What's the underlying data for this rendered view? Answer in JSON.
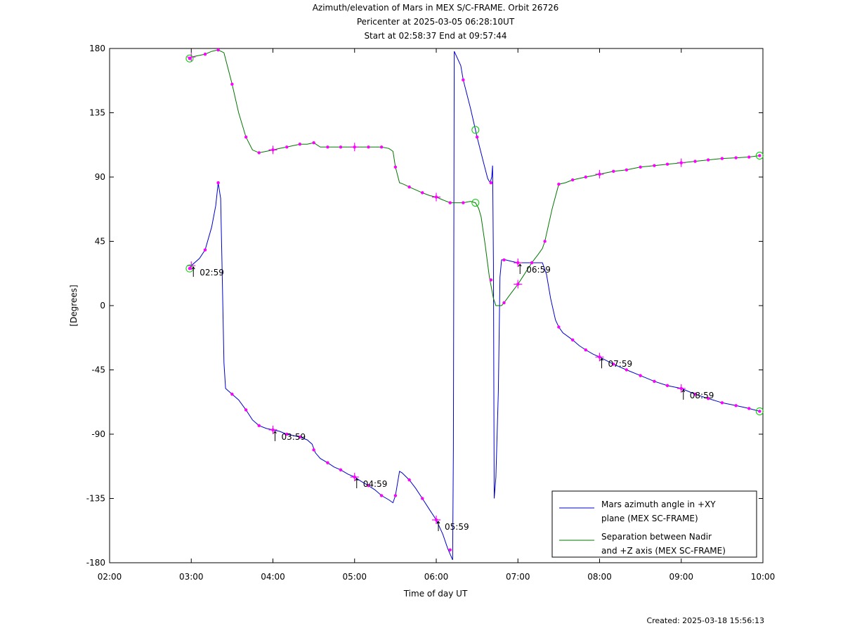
{
  "title": {
    "line1": "Azimuth/elevation of Mars in MEX S/C-FRAME.  Orbit 26726",
    "line2": "Pericenter at 2025-03-05 06:28:10UT",
    "line3": "Start at 02:58:37 End at 09:57:44"
  },
  "created": "Created: 2025-03-18 15:56:13",
  "chart_data": {
    "type": "line",
    "xlabel": "Time of day UT",
    "ylabel": "[Degrees]",
    "xlim": [
      2.0,
      10.0
    ],
    "ylim": [
      -180,
      180
    ],
    "x_ticks": [
      {
        "v": 2,
        "label": "02:00"
      },
      {
        "v": 3,
        "label": "03:00"
      },
      {
        "v": 4,
        "label": "04:00"
      },
      {
        "v": 5,
        "label": "05:00"
      },
      {
        "v": 6,
        "label": "06:00"
      },
      {
        "v": 7,
        "label": "07:00"
      },
      {
        "v": 8,
        "label": "08:00"
      },
      {
        "v": 9,
        "label": "09:00"
      },
      {
        "v": 10,
        "label": "10:00"
      }
    ],
    "y_ticks": [
      {
        "v": 180,
        "label": "180"
      },
      {
        "v": 135,
        "label": "135"
      },
      {
        "v": 90,
        "label": "90"
      },
      {
        "v": 45,
        "label": "45"
      },
      {
        "v": 0,
        "label": "0"
      },
      {
        "v": -45,
        "label": "-45"
      },
      {
        "v": -90,
        "label": "-90"
      },
      {
        "v": -135,
        "label": "-135"
      },
      {
        "v": -180,
        "label": "-180"
      }
    ],
    "grid": false,
    "legend_position": "bottom-right",
    "marker_color": "#ff00ff",
    "circle_color": "#00cc00",
    "series": [
      {
        "name": "Mars azimuth angle in +XY plane (MEX SC-FRAME)",
        "legend_lines": [
          "Mars azimuth angle in +XY",
          "plane (MEX SC-FRAME)"
        ],
        "color": "#0000cc",
        "points": [
          [
            2.98,
            26
          ],
          [
            3.0,
            28
          ],
          [
            3.1,
            33
          ],
          [
            3.17,
            39
          ],
          [
            3.25,
            55
          ],
          [
            3.3,
            70
          ],
          [
            3.33,
            86
          ],
          [
            3.36,
            75
          ],
          [
            3.38,
            20
          ],
          [
            3.4,
            -40
          ],
          [
            3.42,
            -58
          ],
          [
            3.5,
            -62
          ],
          [
            3.58,
            -66
          ],
          [
            3.67,
            -73
          ],
          [
            3.75,
            -80
          ],
          [
            3.83,
            -84
          ],
          [
            3.92,
            -86
          ],
          [
            4.0,
            -87
          ],
          [
            4.08,
            -88
          ],
          [
            4.17,
            -90
          ],
          [
            4.25,
            -91
          ],
          [
            4.33,
            -92
          ],
          [
            4.42,
            -94
          ],
          [
            4.48,
            -97
          ],
          [
            4.52,
            -103
          ],
          [
            4.58,
            -107
          ],
          [
            4.67,
            -110
          ],
          [
            4.75,
            -113
          ],
          [
            4.83,
            -115
          ],
          [
            4.92,
            -118
          ],
          [
            5.0,
            -120
          ],
          [
            5.08,
            -123
          ],
          [
            5.17,
            -126
          ],
          [
            5.25,
            -129
          ],
          [
            5.33,
            -133
          ],
          [
            5.42,
            -136
          ],
          [
            5.47,
            -138
          ],
          [
            5.5,
            -133
          ],
          [
            5.55,
            -116
          ],
          [
            5.58,
            -117
          ],
          [
            5.67,
            -122
          ],
          [
            5.75,
            -128
          ],
          [
            5.83,
            -135
          ],
          [
            5.92,
            -143
          ],
          [
            6.0,
            -150
          ],
          [
            6.08,
            -160
          ],
          [
            6.14,
            -170
          ],
          [
            6.2,
            -178
          ],
          [
            6.21,
            -100
          ],
          [
            6.22,
            178
          ],
          [
            6.3,
            168
          ],
          [
            6.33,
            158
          ],
          [
            6.42,
            138
          ],
          [
            6.48,
            123
          ],
          [
            6.5,
            118
          ],
          [
            6.58,
            100
          ],
          [
            6.63,
            89
          ],
          [
            6.66,
            86
          ],
          [
            6.68,
            90
          ],
          [
            6.69,
            98
          ],
          [
            6.7,
            30
          ],
          [
            6.71,
            -135
          ],
          [
            6.73,
            -120
          ],
          [
            6.76,
            -60
          ],
          [
            6.78,
            20
          ],
          [
            6.8,
            32
          ],
          [
            6.85,
            32
          ],
          [
            6.92,
            31
          ],
          [
            7.0,
            30
          ],
          [
            7.08,
            30
          ],
          [
            7.17,
            30
          ],
          [
            7.25,
            30
          ],
          [
            7.3,
            30
          ],
          [
            7.35,
            22
          ],
          [
            7.4,
            5
          ],
          [
            7.46,
            -10
          ],
          [
            7.5,
            -15
          ],
          [
            7.55,
            -19
          ],
          [
            7.67,
            -24
          ],
          [
            7.75,
            -28
          ],
          [
            7.83,
            -31
          ],
          [
            7.92,
            -34
          ],
          [
            8.0,
            -36
          ],
          [
            8.17,
            -41
          ],
          [
            8.33,
            -45
          ],
          [
            8.5,
            -49
          ],
          [
            8.67,
            -53
          ],
          [
            8.83,
            -56
          ],
          [
            9.0,
            -58
          ],
          [
            9.17,
            -62
          ],
          [
            9.33,
            -65
          ],
          [
            9.5,
            -68
          ],
          [
            9.67,
            -70
          ],
          [
            9.83,
            -72
          ],
          [
            9.96,
            -74
          ]
        ],
        "markers": [
          [
            2.98,
            26
          ],
          [
            3.17,
            39
          ],
          [
            3.33,
            86
          ],
          [
            3.5,
            -62
          ],
          [
            3.67,
            -73
          ],
          [
            3.83,
            -84
          ],
          [
            4.0,
            -87
          ],
          [
            4.17,
            -90
          ],
          [
            4.33,
            -92
          ],
          [
            4.5,
            -101
          ],
          [
            4.67,
            -110
          ],
          [
            4.83,
            -115
          ],
          [
            5.0,
            -120
          ],
          [
            5.17,
            -126
          ],
          [
            5.33,
            -133
          ],
          [
            5.5,
            -133
          ],
          [
            5.67,
            -122
          ],
          [
            5.83,
            -135
          ],
          [
            6.0,
            -150
          ],
          [
            6.17,
            -171
          ],
          [
            6.33,
            158
          ],
          [
            6.5,
            118
          ],
          [
            6.67,
            86
          ],
          [
            6.83,
            32
          ],
          [
            7.0,
            30
          ],
          [
            7.17,
            30
          ],
          [
            7.5,
            -15
          ],
          [
            7.67,
            -24
          ],
          [
            7.83,
            -31
          ],
          [
            8.0,
            -36
          ],
          [
            8.17,
            -41
          ],
          [
            8.33,
            -45
          ],
          [
            8.5,
            -49
          ],
          [
            8.67,
            -53
          ],
          [
            8.83,
            -56
          ],
          [
            9.0,
            -58
          ],
          [
            9.17,
            -62
          ],
          [
            9.33,
            -65
          ],
          [
            9.5,
            -68
          ],
          [
            9.67,
            -70
          ],
          [
            9.83,
            -72
          ],
          [
            9.96,
            -74
          ]
        ],
        "crosses": [
          [
            3.0,
            28
          ],
          [
            4.0,
            -87
          ],
          [
            5.0,
            -120
          ],
          [
            6.0,
            -150
          ],
          [
            7.0,
            30
          ],
          [
            8.0,
            -36
          ],
          [
            9.0,
            -58
          ]
        ],
        "circles": [
          [
            2.98,
            26
          ],
          [
            6.48,
            123
          ],
          [
            9.96,
            -74
          ]
        ]
      },
      {
        "name": "Separation between Nadir and +Z axis (MEX SC-FRAME)",
        "legend_lines": [
          "Separation between Nadir",
          "and +Z axis (MEX SC-FRAME)"
        ],
        "color": "#007700",
        "points": [
          [
            2.98,
            173
          ],
          [
            3.0,
            174
          ],
          [
            3.08,
            175
          ],
          [
            3.17,
            176
          ],
          [
            3.25,
            178
          ],
          [
            3.33,
            179
          ],
          [
            3.4,
            177
          ],
          [
            3.5,
            155
          ],
          [
            3.58,
            135
          ],
          [
            3.67,
            118
          ],
          [
            3.75,
            109
          ],
          [
            3.83,
            107
          ],
          [
            3.92,
            108
          ],
          [
            4.0,
            109
          ],
          [
            4.08,
            110
          ],
          [
            4.17,
            111
          ],
          [
            4.25,
            112
          ],
          [
            4.33,
            113
          ],
          [
            4.42,
            113
          ],
          [
            4.5,
            114
          ],
          [
            4.58,
            111
          ],
          [
            4.67,
            111
          ],
          [
            4.75,
            111
          ],
          [
            4.83,
            111
          ],
          [
            4.92,
            111
          ],
          [
            5.0,
            111
          ],
          [
            5.08,
            111
          ],
          [
            5.17,
            111
          ],
          [
            5.25,
            111
          ],
          [
            5.33,
            111
          ],
          [
            5.42,
            110
          ],
          [
            5.47,
            108
          ],
          [
            5.5,
            97
          ],
          [
            5.55,
            86
          ],
          [
            5.6,
            85
          ],
          [
            5.67,
            83
          ],
          [
            5.75,
            81
          ],
          [
            5.83,
            79
          ],
          [
            5.92,
            77
          ],
          [
            6.0,
            76
          ],
          [
            6.08,
            74
          ],
          [
            6.17,
            72
          ],
          [
            6.25,
            72
          ],
          [
            6.33,
            72
          ],
          [
            6.42,
            73
          ],
          [
            6.48,
            72
          ],
          [
            6.52,
            68
          ],
          [
            6.55,
            62
          ],
          [
            6.6,
            42
          ],
          [
            6.65,
            20
          ],
          [
            6.7,
            5
          ],
          [
            6.73,
            0
          ],
          [
            6.8,
            0
          ],
          [
            6.83,
            2
          ],
          [
            6.92,
            9
          ],
          [
            7.0,
            15
          ],
          [
            7.08,
            22
          ],
          [
            7.17,
            30
          ],
          [
            7.25,
            36
          ],
          [
            7.3,
            40
          ],
          [
            7.33,
            45
          ],
          [
            7.42,
            68
          ],
          [
            7.5,
            85
          ],
          [
            7.58,
            86
          ],
          [
            7.67,
            88
          ],
          [
            7.75,
            89
          ],
          [
            7.83,
            90
          ],
          [
            7.92,
            91
          ],
          [
            8.0,
            92
          ],
          [
            8.17,
            94
          ],
          [
            8.33,
            95
          ],
          [
            8.5,
            97
          ],
          [
            8.67,
            98
          ],
          [
            8.83,
            99
          ],
          [
            9.0,
            100
          ],
          [
            9.17,
            101
          ],
          [
            9.33,
            102
          ],
          [
            9.5,
            103
          ],
          [
            9.67,
            103.5
          ],
          [
            9.83,
            104
          ],
          [
            9.96,
            105
          ]
        ],
        "markers": [
          [
            2.98,
            173
          ],
          [
            3.17,
            176
          ],
          [
            3.33,
            179
          ],
          [
            3.5,
            155
          ],
          [
            3.67,
            118
          ],
          [
            3.83,
            107
          ],
          [
            4.0,
            109
          ],
          [
            4.17,
            111
          ],
          [
            4.33,
            113
          ],
          [
            4.5,
            114
          ],
          [
            4.67,
            111
          ],
          [
            4.83,
            111
          ],
          [
            5.0,
            111
          ],
          [
            5.17,
            111
          ],
          [
            5.33,
            111
          ],
          [
            5.5,
            97
          ],
          [
            5.67,
            83
          ],
          [
            5.83,
            79
          ],
          [
            6.0,
            76
          ],
          [
            6.17,
            72
          ],
          [
            6.33,
            72
          ],
          [
            6.67,
            18
          ],
          [
            6.83,
            2
          ],
          [
            7.0,
            15
          ],
          [
            7.17,
            30
          ],
          [
            7.33,
            45
          ],
          [
            7.5,
            85
          ],
          [
            7.67,
            88
          ],
          [
            7.83,
            90
          ],
          [
            8.0,
            92
          ],
          [
            8.17,
            94
          ],
          [
            8.33,
            95
          ],
          [
            8.5,
            97
          ],
          [
            8.67,
            98
          ],
          [
            8.83,
            99
          ],
          [
            9.0,
            100
          ],
          [
            9.17,
            101
          ],
          [
            9.33,
            102
          ],
          [
            9.5,
            103
          ],
          [
            9.67,
            103.5
          ],
          [
            9.83,
            104
          ],
          [
            9.96,
            105
          ]
        ],
        "crosses": [
          [
            3.0,
            174
          ],
          [
            4.0,
            109
          ],
          [
            5.0,
            111
          ],
          [
            6.0,
            76
          ],
          [
            7.0,
            15
          ],
          [
            8.0,
            92
          ],
          [
            9.0,
            100
          ]
        ],
        "circles": [
          [
            2.98,
            173
          ],
          [
            6.48,
            72
          ],
          [
            9.96,
            105
          ]
        ]
      }
    ],
    "annotations": [
      {
        "x": 3.0,
        "y": 28,
        "text": "02:59"
      },
      {
        "x": 4.0,
        "y": -87,
        "text": "03:59"
      },
      {
        "x": 5.0,
        "y": -120,
        "text": "04:59"
      },
      {
        "x": 6.0,
        "y": -150,
        "text": "05:59"
      },
      {
        "x": 7.0,
        "y": 30,
        "text": "06:59"
      },
      {
        "x": 8.0,
        "y": -36,
        "text": "07:59"
      },
      {
        "x": 9.0,
        "y": -58,
        "text": "08:59"
      }
    ]
  }
}
